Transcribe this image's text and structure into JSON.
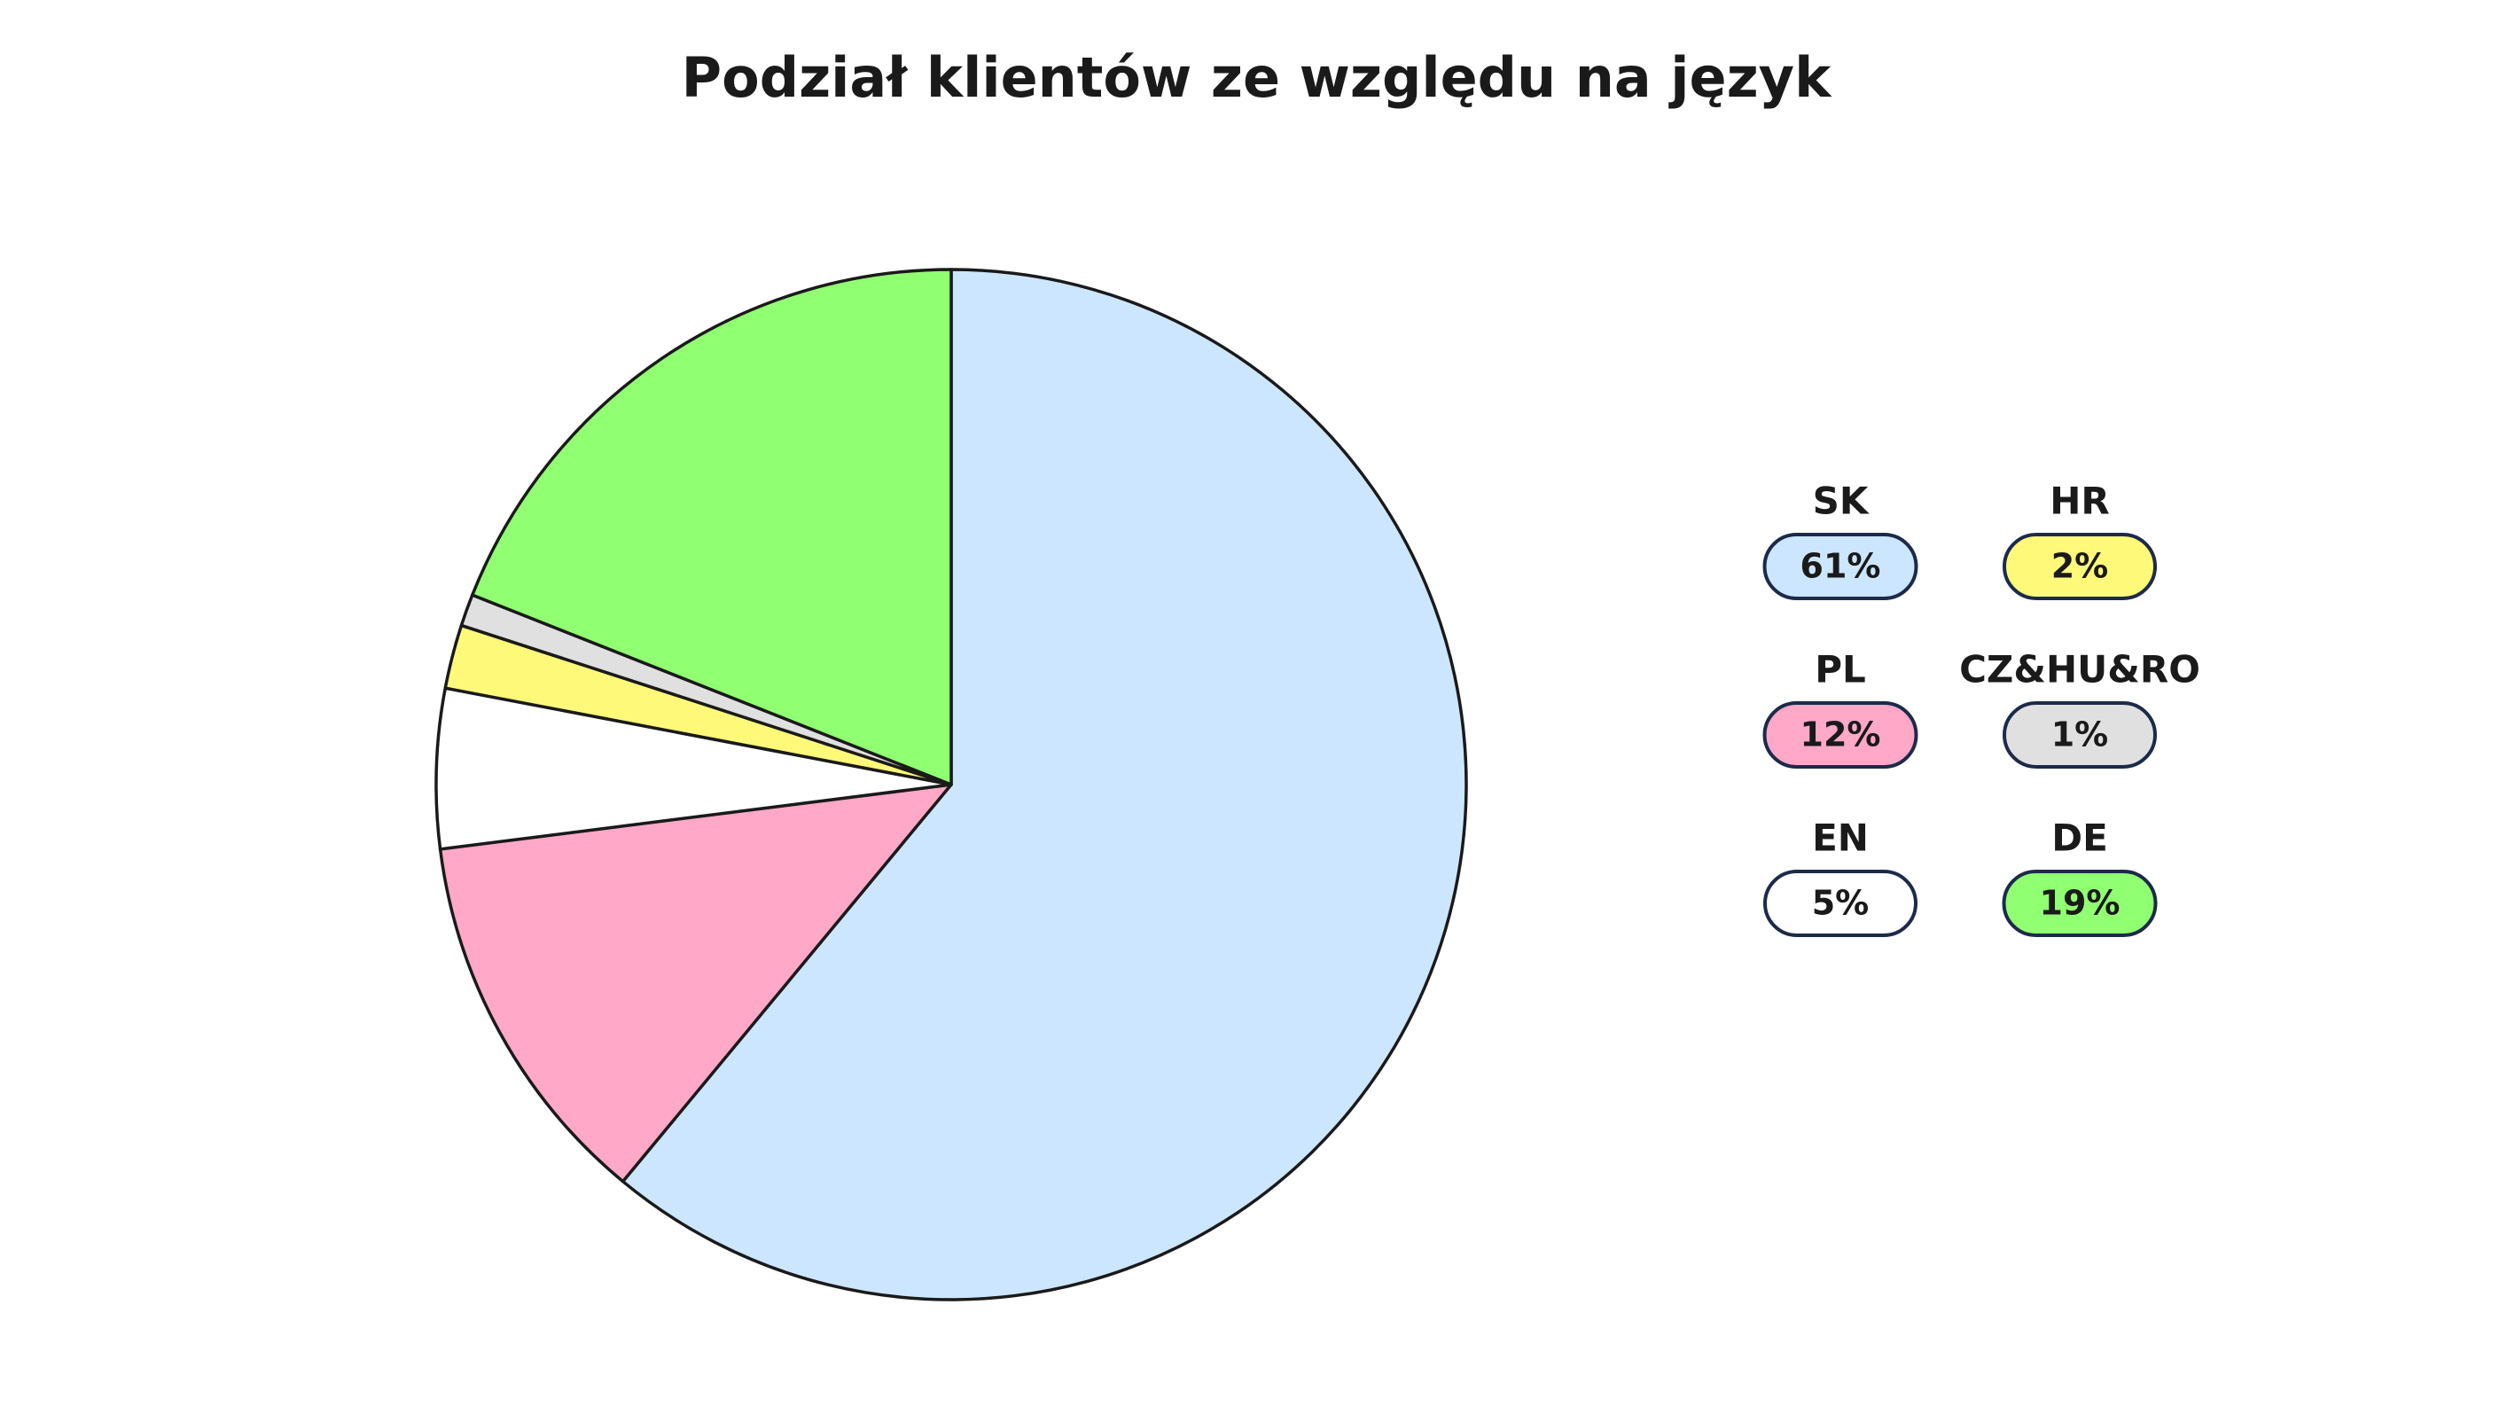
{
  "chart_data": {
    "type": "pie",
    "title": "Podział klientów ze względu na język",
    "categories": [
      "SK",
      "PL",
      "EN",
      "HR",
      "CZ&HU&RO",
      "DE"
    ],
    "values": [
      61,
      12,
      5,
      2,
      1,
      19
    ],
    "value_labels": [
      "61%",
      "12%",
      "5%",
      "2%",
      "1%",
      "19%"
    ],
    "colors": [
      "#cce6ff",
      "#ffa8c8",
      "#ffffff",
      "#fff97a",
      "#e0e0e0",
      "#91ff72"
    ]
  }
}
